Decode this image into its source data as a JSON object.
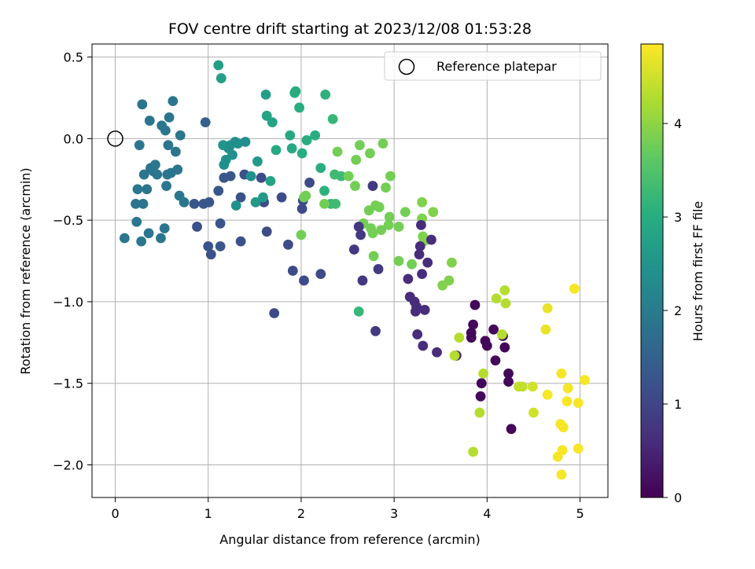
{
  "chart_data": {
    "type": "scatter",
    "title": "FOV centre drift starting at 2023/12/08 01:53:28",
    "xlabel": "Angular distance from reference (arcmin)",
    "ylabel": "Rotation from reference (arcmin)",
    "xlim": [
      -0.25,
      5.3
    ],
    "ylim": [
      -2.2,
      0.58
    ],
    "xticks": [
      0,
      1,
      2,
      3,
      4,
      5
    ],
    "yticks": [
      0.5,
      0.0,
      -0.5,
      -1.0,
      -1.5,
      -2.0
    ],
    "xtick_labels": [
      "0",
      "1",
      "2",
      "3",
      "4",
      "5"
    ],
    "ytick_labels": [
      "0.5",
      "0.0",
      "−0.5",
      "−1.0",
      "−1.5",
      "−2.0"
    ],
    "grid": true,
    "legend": {
      "location": "upper-right",
      "entries": [
        "Reference platepar"
      ]
    },
    "reference_point": {
      "x": 0.0,
      "y": 0.0,
      "marker": "open-circle"
    },
    "colorbar": {
      "label": "Hours from first FF file",
      "colormap": "viridis",
      "range": [
        0,
        4.85
      ],
      "ticks": [
        0,
        1,
        2,
        3,
        4
      ],
      "tick_labels": [
        "0",
        "1",
        "2",
        "3",
        "4"
      ]
    },
    "points": [
      [
        0.1,
        -0.61,
        1.9
      ],
      [
        0.22,
        -0.4,
        1.9
      ],
      [
        0.23,
        -0.51,
        1.9
      ],
      [
        0.24,
        -0.31,
        1.9
      ],
      [
        0.26,
        -0.04,
        1.9
      ],
      [
        0.28,
        -0.63,
        1.9
      ],
      [
        0.29,
        0.21,
        1.9
      ],
      [
        0.3,
        -0.4,
        1.9
      ],
      [
        0.31,
        -0.22,
        1.9
      ],
      [
        0.34,
        -0.31,
        1.9
      ],
      [
        0.36,
        -0.58,
        1.9
      ],
      [
        0.37,
        0.11,
        1.9
      ],
      [
        0.38,
        -0.18,
        1.9
      ],
      [
        0.41,
        -0.2,
        1.9
      ],
      [
        0.43,
        -0.16,
        1.9
      ],
      [
        0.45,
        -0.22,
        1.9
      ],
      [
        0.49,
        -0.61,
        1.9
      ],
      [
        0.5,
        0.08,
        1.9
      ],
      [
        0.53,
        -0.55,
        1.9
      ],
      [
        0.54,
        0.05,
        1.9
      ],
      [
        0.55,
        -0.29,
        1.9
      ],
      [
        0.56,
        -0.22,
        1.9
      ],
      [
        0.57,
        -0.04,
        1.9
      ],
      [
        0.58,
        0.13,
        1.9
      ],
      [
        0.6,
        -0.21,
        1.9
      ],
      [
        0.62,
        0.23,
        1.9
      ],
      [
        0.65,
        -0.08,
        1.9
      ],
      [
        0.67,
        -0.19,
        1.9
      ],
      [
        0.69,
        -0.35,
        1.9
      ],
      [
        0.7,
        0.02,
        1.9
      ],
      [
        0.74,
        -0.39,
        1.9
      ],
      [
        0.85,
        -0.4,
        1.3
      ],
      [
        0.88,
        -0.54,
        1.2
      ],
      [
        0.95,
        -0.4,
        1.3
      ],
      [
        0.97,
        0.1,
        1.5
      ],
      [
        1.0,
        -0.66,
        1.2
      ],
      [
        1.01,
        -0.39,
        1.3
      ],
      [
        1.03,
        -0.71,
        1.2
      ],
      [
        1.11,
        -0.32,
        1.3
      ],
      [
        1.13,
        -0.52,
        1.3
      ],
      [
        1.13,
        -0.66,
        1.3
      ],
      [
        1.17,
        -0.24,
        1.3
      ],
      [
        1.24,
        -0.23,
        1.3
      ],
      [
        1.35,
        -0.36,
        1.2
      ],
      [
        1.35,
        -0.63,
        1.2
      ],
      [
        1.39,
        -0.22,
        1.2
      ],
      [
        1.57,
        -0.24,
        1.1
      ],
      [
        1.6,
        -0.39,
        1.1
      ],
      [
        1.63,
        -0.57,
        1.1
      ],
      [
        1.71,
        -1.07,
        1.1
      ],
      [
        1.79,
        -0.36,
        1.1
      ],
      [
        1.86,
        -0.65,
        1.1
      ],
      [
        1.91,
        -0.81,
        1.1
      ],
      [
        2.01,
        -0.43,
        1.1
      ],
      [
        2.02,
        -0.38,
        1.1
      ],
      [
        2.03,
        -0.87,
        1.1
      ],
      [
        2.09,
        -0.27,
        1.1
      ],
      [
        2.21,
        -0.83,
        1.1
      ],
      [
        1.11,
        0.45,
        2.7
      ],
      [
        1.14,
        0.37,
        2.7
      ],
      [
        1.16,
        -0.04,
        2.5
      ],
      [
        1.17,
        -0.16,
        2.4
      ],
      [
        1.19,
        -0.13,
        2.4
      ],
      [
        1.22,
        -0.06,
        2.4
      ],
      [
        1.24,
        -0.04,
        2.4
      ],
      [
        1.26,
        -0.1,
        2.4
      ],
      [
        1.29,
        -0.02,
        2.4
      ],
      [
        1.3,
        -0.41,
        2.4
      ],
      [
        1.32,
        -0.03,
        2.4
      ],
      [
        1.4,
        -0.02,
        2.4
      ],
      [
        1.46,
        -0.23,
        2.4
      ],
      [
        1.51,
        -0.39,
        2.6
      ],
      [
        1.53,
        -0.14,
        2.6
      ],
      [
        1.59,
        -0.36,
        2.6
      ],
      [
        1.62,
        0.27,
        2.7
      ],
      [
        1.63,
        0.14,
        2.8
      ],
      [
        1.67,
        -0.26,
        2.8
      ],
      [
        1.69,
        0.1,
        2.8
      ],
      [
        1.73,
        -0.07,
        2.9
      ],
      [
        1.88,
        0.02,
        2.9
      ],
      [
        1.9,
        -0.06,
        2.9
      ],
      [
        1.93,
        0.28,
        3.0
      ],
      [
        1.94,
        0.29,
        3.0
      ],
      [
        1.98,
        0.19,
        3.0
      ],
      [
        2.01,
        -0.09,
        3.0
      ],
      [
        2.06,
        -0.01,
        3.0
      ],
      [
        2.15,
        0.02,
        3.0
      ],
      [
        2.21,
        -0.18,
        3.0
      ],
      [
        2.25,
        -0.32,
        3.1
      ],
      [
        2.26,
        0.27,
        3.1
      ],
      [
        2.32,
        -0.4,
        3.2
      ],
      [
        2.34,
        0.12,
        3.2
      ],
      [
        2.36,
        -0.22,
        3.3
      ],
      [
        2.37,
        -0.4,
        3.3
      ],
      [
        2.43,
        -0.23,
        3.3
      ],
      [
        2.62,
        -1.06,
        3.2
      ],
      [
        2.0,
        -0.59,
        3.8
      ],
      [
        2.03,
        -0.36,
        3.8
      ],
      [
        2.05,
        -0.35,
        3.8
      ],
      [
        2.25,
        -0.4,
        3.8
      ],
      [
        2.39,
        -0.08,
        3.8
      ],
      [
        2.51,
        -0.23,
        3.8
      ],
      [
        2.58,
        -0.29,
        3.8
      ],
      [
        2.59,
        -0.13,
        3.8
      ],
      [
        2.63,
        -0.04,
        3.8
      ],
      [
        2.67,
        -0.52,
        3.8
      ],
      [
        2.73,
        -0.44,
        3.8
      ],
      [
        2.74,
        -0.09,
        3.8
      ],
      [
        2.75,
        -0.55,
        3.8
      ],
      [
        2.77,
        -0.58,
        3.8
      ],
      [
        2.78,
        -0.72,
        3.8
      ],
      [
        2.8,
        -0.41,
        3.8
      ],
      [
        2.84,
        -0.42,
        3.8
      ],
      [
        2.86,
        -0.56,
        3.8
      ],
      [
        2.88,
        -0.03,
        3.8
      ],
      [
        2.91,
        -0.3,
        3.8
      ],
      [
        2.94,
        -0.53,
        3.8
      ],
      [
        2.95,
        -0.48,
        3.8
      ],
      [
        2.96,
        -0.23,
        3.8
      ],
      [
        3.05,
        -0.54,
        3.8
      ],
      [
        3.05,
        -0.75,
        3.8
      ],
      [
        3.12,
        -0.45,
        3.8
      ],
      [
        3.19,
        -0.77,
        3.8
      ],
      [
        3.3,
        -0.49,
        3.9
      ],
      [
        3.3,
        -0.39,
        3.9
      ],
      [
        3.31,
        -0.6,
        3.9
      ],
      [
        3.32,
        -0.63,
        3.9
      ],
      [
        3.42,
        -0.45,
        3.9
      ],
      [
        3.52,
        -0.9,
        3.9
      ],
      [
        3.59,
        -0.87,
        3.9
      ],
      [
        3.62,
        -0.76,
        3.9
      ],
      [
        2.57,
        -0.68,
        0.8
      ],
      [
        2.62,
        -0.54,
        0.8
      ],
      [
        2.64,
        -0.59,
        0.8
      ],
      [
        2.66,
        -0.87,
        0.8
      ],
      [
        2.77,
        -0.29,
        0.8
      ],
      [
        2.8,
        -1.18,
        0.8
      ],
      [
        2.83,
        -0.8,
        0.8
      ],
      [
        3.15,
        -0.86,
        0.6
      ],
      [
        3.17,
        -0.97,
        0.6
      ],
      [
        3.22,
        -1.0,
        0.6
      ],
      [
        3.23,
        -1.06,
        0.6
      ],
      [
        3.24,
        -1.03,
        0.6
      ],
      [
        3.25,
        -1.2,
        0.6
      ],
      [
        3.27,
        -0.71,
        0.6
      ],
      [
        3.28,
        -0.66,
        0.6
      ],
      [
        3.29,
        -0.53,
        0.6
      ],
      [
        3.3,
        -0.83,
        0.6
      ],
      [
        3.31,
        -1.27,
        0.6
      ],
      [
        3.33,
        -1.05,
        0.6
      ],
      [
        3.36,
        -0.76,
        0.6
      ],
      [
        3.4,
        -0.62,
        0.6
      ],
      [
        3.46,
        -1.31,
        0.6
      ],
      [
        3.67,
        -1.33,
        0.6
      ],
      [
        3.83,
        -1.19,
        0.1
      ],
      [
        3.83,
        -1.22,
        0.1
      ],
      [
        3.85,
        -1.14,
        0.1
      ],
      [
        3.87,
        -1.02,
        0.1
      ],
      [
        3.93,
        -1.58,
        0.1
      ],
      [
        3.94,
        -1.5,
        0.1
      ],
      [
        3.98,
        -1.24,
        0.1
      ],
      [
        4.0,
        -1.27,
        0.1
      ],
      [
        4.07,
        -1.17,
        0.1
      ],
      [
        4.09,
        -1.36,
        0.1
      ],
      [
        4.17,
        -1.21,
        0.1
      ],
      [
        4.19,
        -1.28,
        0.1
      ],
      [
        4.23,
        -1.44,
        0.1
      ],
      [
        4.23,
        -1.49,
        0.1
      ],
      [
        4.26,
        -1.78,
        0.1
      ],
      [
        3.65,
        -1.33,
        4.3
      ],
      [
        3.7,
        -1.22,
        4.3
      ],
      [
        3.85,
        -1.92,
        4.3
      ],
      [
        3.92,
        -1.68,
        4.3
      ],
      [
        3.96,
        -1.44,
        4.3
      ],
      [
        4.1,
        -0.98,
        4.3
      ],
      [
        4.16,
        -1.2,
        4.3
      ],
      [
        4.19,
        -0.93,
        4.3
      ],
      [
        4.2,
        -1.01,
        4.3
      ],
      [
        4.34,
        -1.52,
        4.4
      ],
      [
        4.38,
        -1.52,
        4.4
      ],
      [
        4.49,
        -1.52,
        4.5
      ],
      [
        4.5,
        -1.68,
        4.5
      ],
      [
        4.63,
        -1.17,
        4.7
      ],
      [
        4.65,
        -1.04,
        4.7
      ],
      [
        4.65,
        -1.57,
        4.8
      ],
      [
        4.76,
        -1.95,
        4.8
      ],
      [
        4.79,
        -1.75,
        4.8
      ],
      [
        4.8,
        -1.44,
        4.8
      ],
      [
        4.8,
        -2.06,
        4.8
      ],
      [
        4.81,
        -1.91,
        4.8
      ],
      [
        4.82,
        -1.77,
        4.8
      ],
      [
        4.86,
        -1.61,
        4.8
      ],
      [
        4.87,
        -1.53,
        4.8
      ],
      [
        4.94,
        -0.92,
        4.8
      ],
      [
        4.98,
        -1.9,
        4.8
      ],
      [
        4.98,
        -1.62,
        4.8
      ],
      [
        5.05,
        -1.48,
        4.8
      ]
    ]
  }
}
